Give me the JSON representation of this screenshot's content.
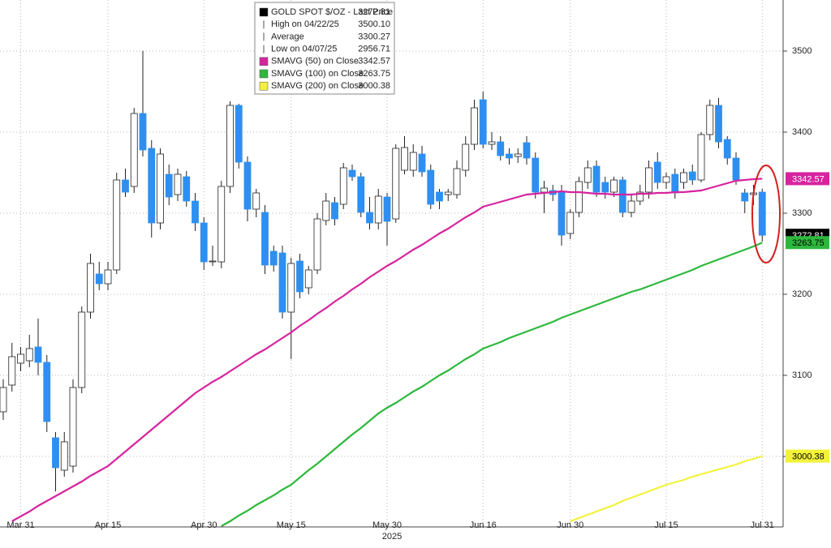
{
  "chart_data": {
    "type": "candlestick",
    "legend": [
      {
        "label": "GOLD SPOT $/OZ - Last Price",
        "value": "3272.81",
        "color": "#000000"
      },
      {
        "label": "High on 04/22/25",
        "value": "3500.10"
      },
      {
        "label": "Average",
        "value": "3300.27"
      },
      {
        "label": "Low on 04/07/25",
        "value": "2956.71"
      },
      {
        "label": "SMAVG (50)  on Close",
        "value": "3342.57",
        "color": "#d6249f"
      },
      {
        "label": "SMAVG (100)  on Close",
        "value": "3263.75",
        "color": "#2db83d"
      },
      {
        "label": "SMAVG (200)  on Close",
        "value": "3000.38",
        "color": "#f2f23a"
      }
    ],
    "xlabel": "2025",
    "categories": [
      null,
      null,
      "Mar 31",
      null,
      null,
      null,
      null,
      null,
      null,
      null,
      null,
      null,
      "Apr 15",
      null,
      null,
      null,
      null,
      null,
      null,
      null,
      null,
      null,
      null,
      "Apr 30",
      null,
      null,
      null,
      null,
      null,
      null,
      null,
      null,
      null,
      "May 15",
      null,
      null,
      null,
      null,
      null,
      null,
      null,
      null,
      null,
      null,
      "May 30",
      null,
      null,
      null,
      null,
      null,
      null,
      null,
      null,
      null,
      null,
      "Jun 16",
      null,
      null,
      null,
      null,
      null,
      null,
      null,
      null,
      null,
      "Jun 30",
      null,
      null,
      null,
      null,
      null,
      null,
      null,
      null,
      null,
      null,
      "Jul 15",
      null,
      null,
      null,
      null,
      null,
      null,
      null,
      null,
      null,
      null,
      "Jul 31"
    ],
    "up_color": "#ffffff",
    "down_color": "#2e8ff0",
    "open": [
      3055,
      3088,
      3115,
      3118,
      3135,
      3116,
      3023,
      2983,
      2988,
      3085,
      3178,
      3225,
      3213,
      3230,
      3341,
      3333,
      3423,
      3380,
      3288,
      3348,
      3323,
      3345,
      3315,
      3288,
      3240,
      3240,
      3333,
      3433,
      3363,
      3305,
      3301,
      3253,
      3251,
      3178,
      3241,
      3208,
      3230,
      3291,
      3313,
      3311,
      3353,
      3345,
      3301,
      3288,
      3320,
      3293,
      3353,
      3353,
      3373,
      3353,
      3326,
      3323,
      3323,
      3353,
      3385,
      3440,
      3385,
      3388,
      3373,
      3370,
      3387,
      3368,
      3326,
      3328,
      3327,
      3275,
      3301,
      3338,
      3358,
      3338,
      3326,
      3341,
      3301,
      3315,
      3326,
      3363,
      3338,
      3348,
      3338,
      3351,
      3341,
      3397,
      3433,
      3391,
      3368,
      3325,
      3323,
      3326
    ],
    "high": [
      3095,
      3140,
      3135,
      3150,
      3170,
      3125,
      3030,
      3030,
      3095,
      3185,
      3250,
      3240,
      3240,
      3350,
      3355,
      3430,
      3500.1,
      3390,
      3380,
      3360,
      3355,
      3352,
      3325,
      3295,
      3260,
      3340,
      3438,
      3435,
      3370,
      3330,
      3310,
      3260,
      3260,
      3245,
      3250,
      3235,
      3300,
      3325,
      3320,
      3362,
      3360,
      3350,
      3320,
      3330,
      3325,
      3385,
      3395,
      3385,
      3383,
      3360,
      3330,
      3330,
      3365,
      3395,
      3440,
      3450,
      3400,
      3395,
      3380,
      3380,
      3395,
      3375,
      3340,
      3335,
      3335,
      3305,
      3345,
      3365,
      3365,
      3345,
      3345,
      3345,
      3322,
      3335,
      3365,
      3375,
      3350,
      3355,
      3355,
      3360,
      3400,
      3440,
      3442,
      3395,
      3375,
      3330,
      3335,
      3330
    ],
    "low": [
      3045,
      3080,
      3105,
      3110,
      3100,
      3030,
      2956.71,
      2975,
      2980,
      3078,
      3170,
      3205,
      3205,
      3225,
      3320,
      3325,
      3370,
      3270,
      3280,
      3310,
      3315,
      3308,
      3278,
      3230,
      3235,
      3232,
      3325,
      3355,
      3290,
      3295,
      3225,
      3228,
      3170,
      3120,
      3195,
      3200,
      3225,
      3285,
      3285,
      3305,
      3340,
      3295,
      3280,
      3280,
      3260,
      3288,
      3348,
      3345,
      3345,
      3305,
      3305,
      3315,
      3318,
      3345,
      3378,
      3380,
      3378,
      3365,
      3360,
      3362,
      3360,
      3318,
      3300,
      3315,
      3260,
      3268,
      3295,
      3330,
      3320,
      3318,
      3320,
      3295,
      3295,
      3310,
      3318,
      3330,
      3330,
      3318,
      3330,
      3335,
      3338,
      3390,
      3380,
      3360,
      3335,
      3300,
      3310,
      3265
    ],
    "close": [
      3085,
      3123,
      3126,
      3133,
      3116,
      3043,
      2986,
      3018,
      3085,
      3178,
      3238,
      3213,
      3230,
      3341,
      3326,
      3423,
      3378,
      3288,
      3373,
      3320,
      3348,
      3315,
      3288,
      3240,
      3241,
      3333,
      3433,
      3363,
      3305,
      3325,
      3236,
      3236,
      3178,
      3238,
      3203,
      3230,
      3293,
      3315,
      3293,
      3356,
      3345,
      3301,
      3288,
      3321,
      3290,
      3380,
      3381,
      3375,
      3351,
      3311,
      3315,
      3326,
      3355,
      3385,
      3430,
      3385,
      3388,
      3371,
      3368,
      3373,
      3368,
      3326,
      3331,
      3323,
      3273,
      3301,
      3339,
      3356,
      3326,
      3326,
      3341,
      3301,
      3315,
      3326,
      3356,
      3338,
      3345,
      3325,
      3350,
      3341,
      3397,
      3433,
      3388,
      3368,
      3341,
      3315,
      3325,
      3272.81
    ],
    "series": [
      {
        "name": "SMAVG (50)",
        "color": "#d6249f",
        "values": [
          null,
          2920,
          2926,
          2932,
          2939,
          2945,
          2951,
          2957,
          2963,
          2969,
          2976,
          2982,
          2988,
          2997,
          3006,
          3015,
          3024,
          3033,
          3042,
          3051,
          3060,
          3069,
          3078,
          3085,
          3092,
          3098,
          3105,
          3112,
          3119,
          3126,
          3132,
          3139,
          3146,
          3153,
          3161,
          3168,
          3176,
          3183,
          3191,
          3198,
          3206,
          3213,
          3221,
          3228,
          3235,
          3241,
          3248,
          3255,
          3261,
          3268,
          3275,
          3281,
          3288,
          3295,
          3301,
          3308,
          3311,
          3314,
          3317,
          3320,
          3323,
          3324,
          3325,
          3326,
          3327,
          3326,
          3326,
          3325,
          3324,
          3324,
          3323,
          3323,
          3323,
          3324,
          3324,
          3325,
          3325,
          3326,
          3326,
          3327,
          3328,
          3331,
          3334,
          3337,
          3340,
          3341,
          3342,
          3342.57
        ]
      },
      {
        "name": "SMAVG (100)",
        "color": "#2db83d",
        "values": [
          null,
          null,
          null,
          null,
          null,
          null,
          null,
          null,
          null,
          null,
          null,
          null,
          null,
          null,
          null,
          null,
          null,
          null,
          null,
          null,
          null,
          null,
          null,
          null,
          null,
          2914,
          2920,
          2927,
          2933,
          2940,
          2946,
          2952,
          2959,
          2965,
          2974,
          2983,
          2991,
          3000,
          3009,
          3018,
          3027,
          3035,
          3044,
          3053,
          3060,
          3066,
          3073,
          3080,
          3086,
          3093,
          3100,
          3106,
          3113,
          3120,
          3126,
          3133,
          3137,
          3141,
          3146,
          3150,
          3154,
          3158,
          3162,
          3166,
          3171,
          3175,
          3179,
          3183,
          3187,
          3191,
          3195,
          3199,
          3203,
          3206,
          3210,
          3214,
          3218,
          3222,
          3226,
          3230,
          3235,
          3239,
          3243,
          3247,
          3251,
          3255,
          3259,
          3263.75
        ]
      },
      {
        "name": "SMAVG (200)",
        "color": "#f2f23a",
        "values": [
          null,
          null,
          null,
          null,
          null,
          null,
          null,
          null,
          null,
          null,
          null,
          null,
          null,
          null,
          null,
          null,
          null,
          null,
          null,
          null,
          null,
          null,
          null,
          null,
          null,
          null,
          null,
          null,
          null,
          null,
          null,
          null,
          null,
          null,
          null,
          null,
          null,
          null,
          null,
          null,
          null,
          null,
          null,
          null,
          null,
          null,
          null,
          null,
          null,
          null,
          null,
          null,
          null,
          null,
          null,
          null,
          null,
          null,
          null,
          null,
          null,
          null,
          null,
          null,
          null,
          2920,
          2924,
          2928,
          2932,
          2936,
          2940,
          2945,
          2949,
          2953,
          2957,
          2961,
          2965,
          2968,
          2971,
          2975,
          2978,
          2981,
          2984,
          2987,
          2990,
          2994,
          2997,
          3000.38
        ]
      }
    ],
    "value_tags": [
      {
        "legend": 4,
        "text_color": "#ffffff"
      },
      {
        "legend": 0,
        "text_color": "#ffffff"
      },
      {
        "legend": 5,
        "text_color": "#000000"
      },
      {
        "legend": 6,
        "text_color": "#000000"
      }
    ],
    "ylim": [
      2913,
      3563
    ],
    "yticks": [
      3000,
      3100,
      3200,
      3300,
      3400,
      3500
    ],
    "grid": true
  }
}
